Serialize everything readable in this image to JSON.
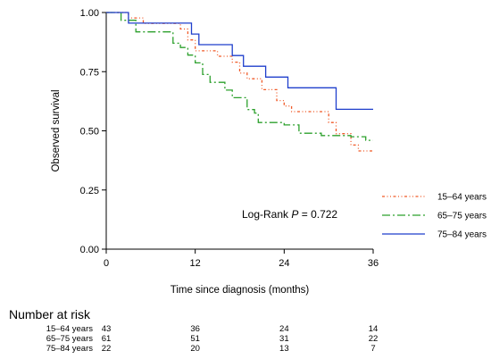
{
  "chart_data": {
    "type": "line",
    "subtype": "kaplan-meier step curves",
    "xlabel": "Time since diagnosis (months)",
    "ylabel": "Observed survival",
    "xlim": [
      0,
      36
    ],
    "ylim": [
      0,
      1
    ],
    "x_ticks": [
      "0",
      "12",
      "24",
      "36"
    ],
    "y_ticks": [
      "0.00",
      "0.25",
      "0.50",
      "0.75",
      "1.00"
    ],
    "grid": false,
    "legend_position": "right",
    "annotation": {
      "prefix": "Log-Rank ",
      "p_symbol": "P",
      "suffix": " = 0.722"
    },
    "series": [
      {
        "name": "15–64 years",
        "color": "#f05a28",
        "style": "dash-dot-dot",
        "points": [
          [
            0,
            1.0
          ],
          [
            3,
            0.977
          ],
          [
            5,
            0.954
          ],
          [
            8,
            0.954
          ],
          [
            10,
            0.93
          ],
          [
            11,
            0.884
          ],
          [
            12,
            0.838
          ],
          [
            15,
            0.815
          ],
          [
            17,
            0.79
          ],
          [
            18,
            0.744
          ],
          [
            19,
            0.72
          ],
          [
            21,
            0.674
          ],
          [
            23,
            0.628
          ],
          [
            24,
            0.605
          ],
          [
            25,
            0.581
          ],
          [
            30,
            0.535
          ],
          [
            31,
            0.488
          ],
          [
            33,
            0.44
          ],
          [
            34,
            0.415
          ],
          [
            36,
            0.415
          ]
        ]
      },
      {
        "name": "65–75 years",
        "color": "#2ca02c",
        "style": "long-dash-dot",
        "points": [
          [
            0,
            1.0
          ],
          [
            2,
            0.967
          ],
          [
            4,
            0.918
          ],
          [
            9,
            0.87
          ],
          [
            10,
            0.852
          ],
          [
            11,
            0.82
          ],
          [
            12,
            0.787
          ],
          [
            13,
            0.738
          ],
          [
            14,
            0.705
          ],
          [
            16,
            0.672
          ],
          [
            17,
            0.64
          ],
          [
            19,
            0.59
          ],
          [
            20,
            0.575
          ],
          [
            20.5,
            0.535
          ],
          [
            24,
            0.525
          ],
          [
            26,
            0.49
          ],
          [
            29,
            0.48
          ],
          [
            33,
            0.475
          ],
          [
            35,
            0.46
          ],
          [
            36,
            0.46
          ]
        ]
      },
      {
        "name": "75–84 years",
        "color": "#1f3fcc",
        "style": "solid",
        "points": [
          [
            0,
            1.0
          ],
          [
            3,
            0.955
          ],
          [
            11.5,
            0.909
          ],
          [
            12.5,
            0.864
          ],
          [
            17,
            0.818
          ],
          [
            18.5,
            0.773
          ],
          [
            21.5,
            0.727
          ],
          [
            24.5,
            0.682
          ],
          [
            31,
            0.591
          ],
          [
            36,
            0.591
          ]
        ]
      }
    ]
  },
  "risk_table": {
    "title": "Number at risk",
    "times": [
      0,
      12,
      24,
      36
    ],
    "rows": [
      {
        "label": "15–64 years",
        "counts": [
          "43",
          "36",
          "24",
          "14"
        ]
      },
      {
        "label": "65–75 years",
        "counts": [
          "61",
          "51",
          "31",
          "22"
        ]
      },
      {
        "label": "75–84 years",
        "counts": [
          "22",
          "20",
          "13",
          "7"
        ]
      }
    ]
  }
}
